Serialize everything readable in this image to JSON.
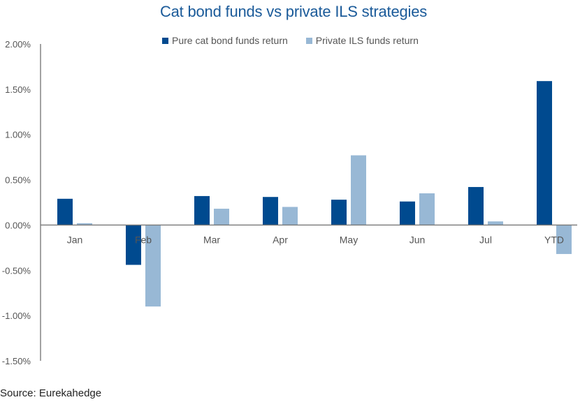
{
  "chart_data": {
    "type": "bar",
    "title": "Cat bond funds vs private ILS strategies",
    "xlabel": "",
    "ylabel": "",
    "categories": [
      "Jan",
      "Feb",
      "Mar",
      "Apr",
      "May",
      "Jun",
      "Jul",
      "YTD"
    ],
    "series": [
      {
        "name": "Pure cat bond funds return",
        "color": "#004a8f",
        "values": [
          0.29,
          -0.44,
          0.32,
          0.31,
          0.28,
          0.26,
          0.42,
          1.59
        ]
      },
      {
        "name": "Private ILS funds return",
        "color": "#98b8d5",
        "values": [
          0.02,
          -0.9,
          0.18,
          0.2,
          0.77,
          0.35,
          0.04,
          -0.32
        ]
      }
    ],
    "ylim": [
      -1.5,
      2.0
    ],
    "yticks": [
      2.0,
      1.5,
      1.0,
      0.5,
      0.0,
      -0.5,
      -1.0,
      -1.5
    ],
    "ytick_labels": [
      "2.00%",
      "1.50%",
      "1.00%",
      "0.50%",
      "0.00%",
      "-0.50%",
      "-1.00%",
      "-1.50%"
    ],
    "value_unit": "%",
    "grid": false,
    "legend_position": "top-center"
  },
  "source": "Source: Eurekahedge"
}
